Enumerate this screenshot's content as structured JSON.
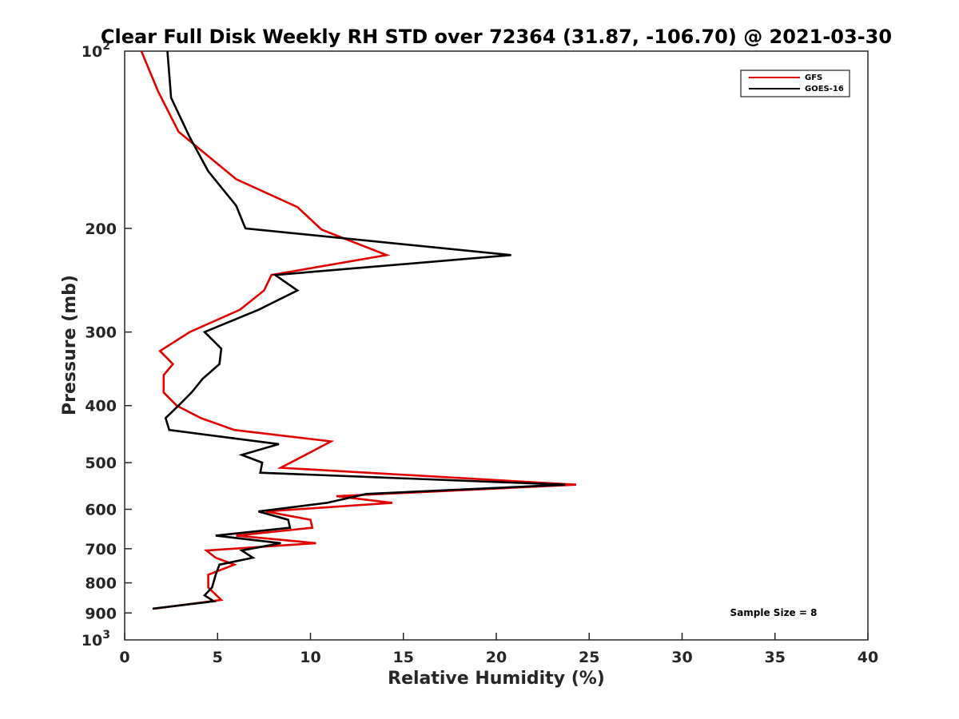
{
  "chart_data": {
    "type": "line",
    "title": "Clear Full Disk Weekly RH STD over 72364 (31.87, -106.70) @ 2021-03-30",
    "xlabel": "Relative Humidity (%)",
    "ylabel": "Pressure (mb)",
    "xlim": [
      0,
      40
    ],
    "ylim": [
      100,
      1000
    ],
    "y_scale": "log",
    "y_reversed": true,
    "grid": false,
    "legend_position": "top-right",
    "x_ticks": [
      "0",
      "5",
      "10",
      "15",
      "20",
      "25",
      "30",
      "35",
      "40"
    ],
    "x_tick_values": [
      0,
      5,
      10,
      15,
      20,
      25,
      30,
      35,
      40
    ],
    "y_ticks": [
      {
        "value": 100,
        "base": "10",
        "exp": "2"
      },
      {
        "value": 200,
        "label": "200"
      },
      {
        "value": 300,
        "label": "300"
      },
      {
        "value": 400,
        "label": "400"
      },
      {
        "value": 500,
        "label": "500"
      },
      {
        "value": 600,
        "label": "600"
      },
      {
        "value": 700,
        "label": "700"
      },
      {
        "value": 800,
        "label": "800"
      },
      {
        "value": 900,
        "label": "900"
      },
      {
        "value": 1000,
        "base": "10",
        "exp": "3"
      }
    ],
    "annotation": "Sample Size = 8",
    "series": [
      {
        "name": "GFS",
        "color": "#e00000",
        "points": [
          [
            0.9,
            100
          ],
          [
            1.8,
            117
          ],
          [
            2.9,
            137
          ],
          [
            6.0,
            165
          ],
          [
            9.3,
            184
          ],
          [
            10.6,
            201
          ],
          [
            14.1,
            222
          ],
          [
            7.9,
            240
          ],
          [
            7.5,
            255
          ],
          [
            6.2,
            275
          ],
          [
            3.5,
            300
          ],
          [
            1.9,
            323
          ],
          [
            2.6,
            340
          ],
          [
            2.1,
            355
          ],
          [
            2.1,
            380
          ],
          [
            2.8,
            400
          ],
          [
            4.1,
            420
          ],
          [
            5.9,
            440
          ],
          [
            11.1,
            460
          ],
          [
            10.0,
            480
          ],
          [
            8.4,
            510
          ],
          [
            24.3,
            545
          ],
          [
            11.4,
            570
          ],
          [
            14.4,
            585
          ],
          [
            7.6,
            605
          ],
          [
            10.0,
            625
          ],
          [
            10.1,
            645
          ],
          [
            6.0,
            665
          ],
          [
            10.3,
            685
          ],
          [
            4.4,
            705
          ],
          [
            4.9,
            725
          ],
          [
            5.9,
            745
          ],
          [
            4.5,
            775
          ],
          [
            4.5,
            815
          ],
          [
            5.2,
            855
          ],
          [
            1.6,
            885
          ]
        ]
      },
      {
        "name": "GOES-16",
        "color": "#000000",
        "points": [
          [
            2.3,
            100
          ],
          [
            2.5,
            120
          ],
          [
            3.5,
            140
          ],
          [
            4.5,
            160
          ],
          [
            6.0,
            183
          ],
          [
            6.5,
            200
          ],
          [
            20.8,
            222
          ],
          [
            8.1,
            240
          ],
          [
            9.3,
            255
          ],
          [
            7.2,
            275
          ],
          [
            4.3,
            300
          ],
          [
            5.2,
            320
          ],
          [
            5.1,
            340
          ],
          [
            4.2,
            360
          ],
          [
            3.6,
            380
          ],
          [
            2.9,
            400
          ],
          [
            2.2,
            420
          ],
          [
            2.4,
            440
          ],
          [
            8.3,
            465
          ],
          [
            6.3,
            485
          ],
          [
            7.4,
            500
          ],
          [
            7.3,
            520
          ],
          [
            23.7,
            545
          ],
          [
            13.0,
            565
          ],
          [
            10.9,
            585
          ],
          [
            7.2,
            605
          ],
          [
            8.8,
            625
          ],
          [
            8.9,
            645
          ],
          [
            4.9,
            665
          ],
          [
            8.4,
            685
          ],
          [
            6.3,
            705
          ],
          [
            6.9,
            725
          ],
          [
            5.1,
            745
          ],
          [
            4.9,
            775
          ],
          [
            4.7,
            815
          ],
          [
            4.3,
            840
          ],
          [
            4.8,
            860
          ],
          [
            1.5,
            885
          ]
        ]
      }
    ]
  }
}
